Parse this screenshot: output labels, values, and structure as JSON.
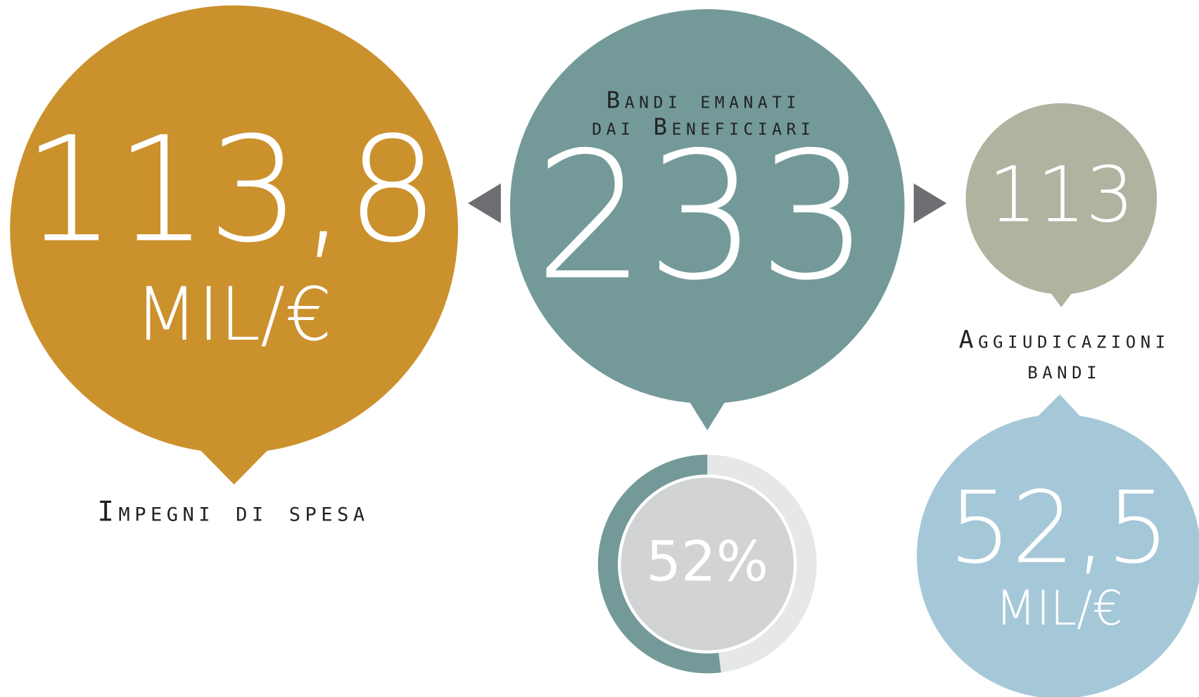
{
  "left": {
    "value": "113,8",
    "unit": "MIL/€",
    "label": "Impegni di spesa"
  },
  "center": {
    "label_line1": "Bandi emanati",
    "label_line2": "dai Beneficiari",
    "value": "233"
  },
  "right": {
    "value": "113",
    "label_line1": "Aggiudicazioni",
    "label_line2": "bandi"
  },
  "bottom_right": {
    "value": "52,5",
    "unit": "MIL/€"
  },
  "donut": {
    "percent": 52,
    "label": "52%"
  }
}
